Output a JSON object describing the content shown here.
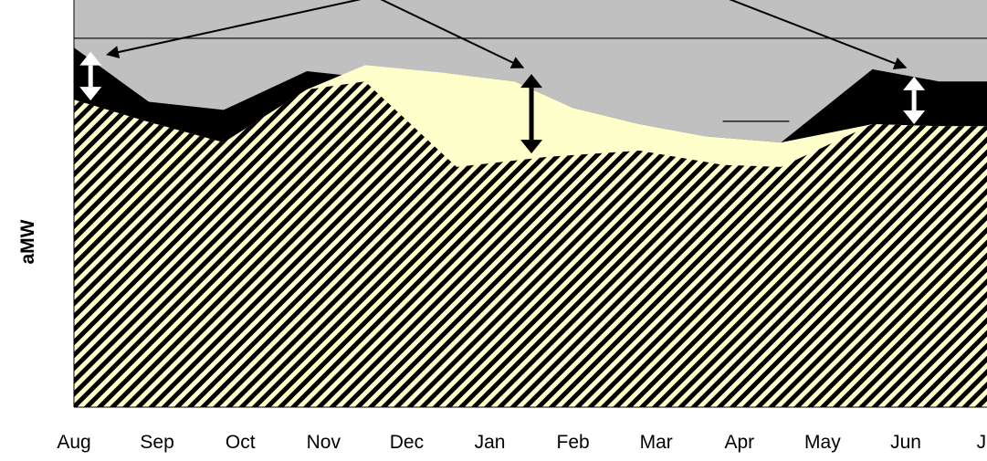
{
  "chart_data": {
    "type": "area",
    "title": "",
    "xlabel": "",
    "ylabel": "aMW",
    "categories": [
      "Aug",
      "Sep",
      "Oct",
      "Nov",
      "Dec",
      "Jan",
      "Feb",
      "Mar",
      "Apr",
      "May",
      "Jun",
      "Jul"
    ],
    "ylim": [
      0,
      100
    ],
    "grid": false,
    "legend": "none",
    "series": [
      {
        "role": "base",
        "pattern": "diagonal-hatch",
        "color": "#ffffcc",
        "points": [
          [
            0,
            75.5
          ],
          [
            0.9,
            70
          ],
          [
            1.8,
            65
          ],
          [
            2.8,
            78
          ],
          [
            3.5,
            80
          ],
          [
            4.6,
            59
          ],
          [
            5.7,
            61.5
          ],
          [
            6.8,
            63
          ],
          [
            7.8,
            59.5
          ],
          [
            8.5,
            59
          ],
          [
            9.6,
            69.5
          ],
          [
            10.4,
            69
          ],
          [
            11.05,
            69
          ]
        ]
      },
      {
        "role": "middle",
        "color": "#ffffcc",
        "points": [
          [
            0,
            75.5
          ],
          [
            0.9,
            70
          ],
          [
            1.8,
            65
          ],
          [
            2.8,
            78
          ],
          [
            3.5,
            84
          ],
          [
            4.5,
            82
          ],
          [
            5.3,
            80
          ],
          [
            6,
            73.5
          ],
          [
            6.8,
            69.5
          ],
          [
            7.6,
            66.5
          ],
          [
            8.5,
            65
          ],
          [
            9.6,
            69.5
          ],
          [
            10.4,
            69
          ],
          [
            11.05,
            69
          ]
        ]
      },
      {
        "role": "top",
        "color": "#000000",
        "points": [
          [
            0,
            88.3
          ],
          [
            0.9,
            75
          ],
          [
            1.8,
            73
          ],
          [
            2.8,
            82.5
          ],
          [
            3.5,
            81
          ],
          [
            4.5,
            82
          ],
          [
            5.3,
            80
          ],
          [
            6,
            73.5
          ],
          [
            6.8,
            69.5
          ],
          [
            7.6,
            66.5
          ],
          [
            8.5,
            65
          ],
          [
            9.6,
            83
          ],
          [
            10.4,
            80
          ],
          [
            11.05,
            80
          ]
        ]
      }
    ],
    "reference_lines": [
      {
        "y": 90.6,
        "x_from": 0,
        "x_to": 11.05
      },
      {
        "y": 70.2,
        "x_from": 7.8,
        "x_to": 8.6
      }
    ],
    "annotations": [
      {
        "type": "arrow",
        "from": [
          4.3,
          104
        ],
        "to": [
          0.4,
          86.6
        ],
        "color": "#000000"
      },
      {
        "type": "arrow",
        "from": [
          3.3,
          104
        ],
        "to": [
          5.4,
          83.4
        ],
        "color": "#000000"
      },
      {
        "type": "arrow",
        "from": [
          7.4,
          104
        ],
        "to": [
          10.0,
          83.4
        ],
        "color": "#000000"
      },
      {
        "type": "double-arrow",
        "x": 0.2,
        "y_from": 87.3,
        "y_to": 75.3,
        "color": "#ffffff"
      },
      {
        "type": "double-arrow",
        "x": 5.5,
        "y_from": 81.8,
        "y_to": 62.3,
        "color": "#000000"
      },
      {
        "type": "double-arrow",
        "x": 10.1,
        "y_from": 81.2,
        "y_to": 69.5,
        "color": "#ffffff"
      }
    ],
    "colors": {
      "background": "#c0c0c0",
      "hatch_light": "#ffffcc",
      "hatch_dark": "#000000",
      "top_band": "#000000",
      "middle_band": "#ffffcc"
    }
  }
}
